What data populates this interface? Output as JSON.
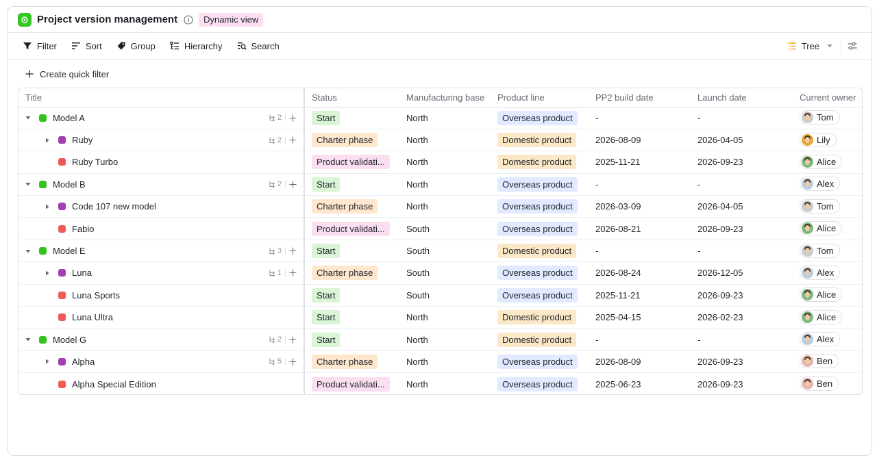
{
  "header": {
    "title": "Project version management",
    "view_badge": "Dynamic view"
  },
  "toolbar": {
    "filter": "Filter",
    "sort": "Sort",
    "group": "Group",
    "hierarchy": "Hierarchy",
    "search": "Search",
    "view_mode": "Tree"
  },
  "quick_filter": {
    "label": "Create quick filter"
  },
  "columns": {
    "title": "Title",
    "status": "Status",
    "manufacturing_base": "Manufacturing base",
    "product_line": "Product line",
    "pp2_build_date": "PP2 build date",
    "launch_date": "Launch date",
    "current_owner": "Current owner"
  },
  "rows": [
    {
      "title": "Model A",
      "level": 0,
      "color": "green",
      "expanded": true,
      "sub_count": "2",
      "status": "Start",
      "base": "North",
      "product_line": "Overseas product",
      "pp2": "-",
      "launch": "-",
      "owner": "Tom"
    },
    {
      "title": "Ruby",
      "level": 1,
      "color": "purple",
      "expanded": false,
      "sub_count": "2",
      "status": "Charter phase",
      "base": "North",
      "product_line": "Domestic product",
      "pp2": "2026-08-09",
      "launch": "2026-04-05",
      "owner": "Lily"
    },
    {
      "title": "Ruby Turbo",
      "level": 1,
      "color": "red",
      "status": "Product validati...",
      "base": "North",
      "product_line": "Domestic product",
      "pp2": "2025-11-21",
      "launch": "2026-09-23",
      "owner": "Alice"
    },
    {
      "title": "Model B",
      "level": 0,
      "color": "green",
      "expanded": true,
      "sub_count": "2",
      "status": "Start",
      "base": "North",
      "product_line": "Overseas product",
      "pp2": "-",
      "launch": "-",
      "owner": "Alex"
    },
    {
      "title": "Code 107 new model",
      "level": 1,
      "color": "purple",
      "expanded": false,
      "status": "Charter phase",
      "base": "North",
      "product_line": "Overseas product",
      "pp2": "2026-03-09",
      "launch": "2026-04-05",
      "owner": "Tom"
    },
    {
      "title": "Fabio",
      "level": 1,
      "color": "red",
      "status": "Product validati...",
      "base": "South",
      "product_line": "Overseas product",
      "pp2": "2026-08-21",
      "launch": "2026-09-23",
      "owner": "Alice"
    },
    {
      "title": "Model E",
      "level": 0,
      "color": "green",
      "expanded": true,
      "sub_count": "3",
      "status": "Start",
      "base": "South",
      "product_line": "Domestic product",
      "pp2": "-",
      "launch": "-",
      "owner": "Tom"
    },
    {
      "title": "Luna",
      "level": 1,
      "color": "purple",
      "expanded": false,
      "sub_count": "1",
      "status": "Charter phase",
      "base": "South",
      "product_line": "Overseas product",
      "pp2": "2026-08-24",
      "launch": "2026-12-05",
      "owner": "Alex"
    },
    {
      "title": "Luna Sports",
      "level": 1,
      "color": "red",
      "status": "Start",
      "base": "South",
      "product_line": "Overseas product",
      "pp2": "2025-11-21",
      "launch": "2026-09-23",
      "owner": "Alice"
    },
    {
      "title": "Luna Ultra",
      "level": 1,
      "color": "red",
      "status": "Start",
      "base": "North",
      "product_line": "Domestic product",
      "pp2": "2025-04-15",
      "launch": "2026-02-23",
      "owner": "Alice"
    },
    {
      "title": "Model G",
      "level": 0,
      "color": "green",
      "expanded": true,
      "sub_count": "2",
      "status": "Start",
      "base": "North",
      "product_line": "Domestic product",
      "pp2": "-",
      "launch": "-",
      "owner": "Alex"
    },
    {
      "title": "Alpha",
      "level": 1,
      "color": "purple",
      "expanded": false,
      "sub_count": "5",
      "status": "Charter phase",
      "base": "North",
      "product_line": "Overseas product",
      "pp2": "2026-08-09",
      "launch": "2026-09-23",
      "owner": "Ben"
    },
    {
      "title": "Alpha Special Edition",
      "level": 1,
      "color": "red",
      "status": "Product validati...",
      "base": "North",
      "product_line": "Overseas product",
      "pp2": "2025-06-23",
      "launch": "2026-09-23",
      "owner": "Ben"
    }
  ],
  "colors": {
    "accent_green": "#33c31f",
    "tree_icon_orange": "#f5a623",
    "view_badge_bg": "#fbdff0"
  }
}
